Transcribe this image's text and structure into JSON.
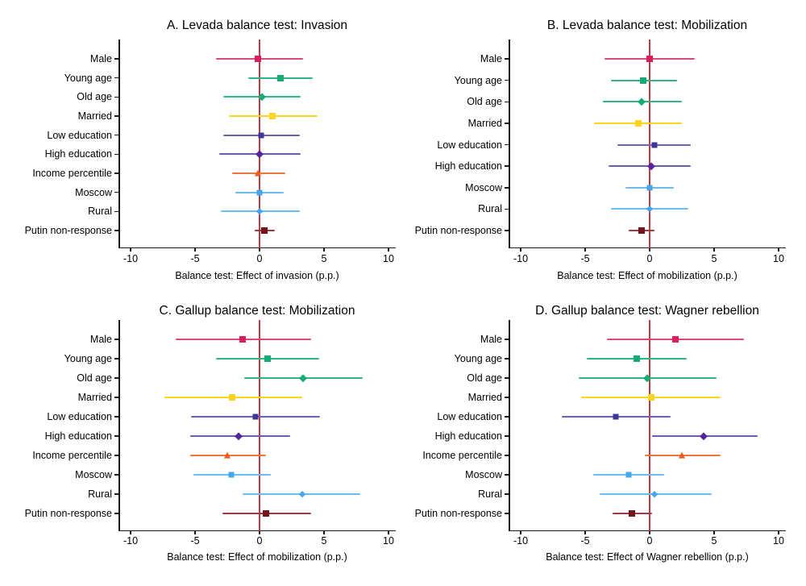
{
  "figure": {
    "background": "#ffffff"
  },
  "styles": {
    "refline_color": "#bf3a42",
    "axis_color": "#1a1a1a",
    "text_color": "#000000",
    "marker_styles": {
      "Male": {
        "shape": "square",
        "color": "#d81e5f",
        "line": "#d84a73",
        "size": 8
      },
      "Young age": {
        "shape": "square",
        "color": "#15ab72",
        "line": "#2db685",
        "size": 8
      },
      "Old age": {
        "shape": "diamond",
        "color": "#15ab72",
        "line": "#2db685",
        "size": 8
      },
      "Married": {
        "shape": "square",
        "color": "#fdd41f",
        "line": "#fdd520",
        "size": 8
      },
      "Low education": {
        "shape": "square",
        "color": "#3d3896",
        "line": "#6c63af",
        "size": 7
      },
      "High education": {
        "shape": "diamond",
        "color": "#54269e",
        "line": "#6c5caf",
        "size": 8
      },
      "Income percentile": {
        "shape": "triangle",
        "color": "#f1591d",
        "line": "#f2753a",
        "size": 9
      },
      "Moscow": {
        "shape": "square",
        "color": "#45a6e9",
        "line": "#6cbcee",
        "size": 7
      },
      "Rural": {
        "shape": "diamond",
        "color": "#45a6e9",
        "line": "#6cbcee",
        "size": 7
      },
      "Putin non-response": {
        "shape": "square",
        "color": "#76141d",
        "line": "#9b3c42",
        "size": 8
      }
    }
  },
  "chart_data": [
    {
      "type": "scatter",
      "subtype": "coefficient-plot-with-ci",
      "title": "A. Levada balance test: Invasion",
      "xlabel": "Balance test: Effect of invasion (p.p.)",
      "xticks": [
        -10,
        -5,
        0,
        5,
        10
      ],
      "xlim": [
        -10.9,
        10.6
      ],
      "refline_x": 0,
      "grid": false,
      "points": [
        {
          "label": "Male",
          "est": -0.1,
          "lo": -3.4,
          "hi": 3.4
        },
        {
          "label": "Young age",
          "est": 1.6,
          "lo": -0.9,
          "hi": 4.1
        },
        {
          "label": "Old age",
          "est": 0.2,
          "lo": -2.8,
          "hi": 3.2
        },
        {
          "label": "Married",
          "est": 1.0,
          "lo": -2.4,
          "hi": 4.5
        },
        {
          "label": "Low education",
          "est": 0.1,
          "lo": -2.8,
          "hi": 3.1
        },
        {
          "label": "High education",
          "est": 0.0,
          "lo": -3.1,
          "hi": 3.2
        },
        {
          "label": "Income percentile",
          "est": -0.1,
          "lo": -2.1,
          "hi": 2.0
        },
        {
          "label": "Moscow",
          "est": 0.0,
          "lo": -1.9,
          "hi": 1.9
        },
        {
          "label": "Rural",
          "est": 0.0,
          "lo": -3.0,
          "hi": 3.1
        },
        {
          "label": "Putin non-response",
          "est": 0.4,
          "lo": -0.4,
          "hi": 1.2
        }
      ]
    },
    {
      "type": "scatter",
      "subtype": "coefficient-plot-with-ci",
      "title": "B. Levada balance test: Mobilization",
      "xlabel": "Balance test: Effect of mobilization (p.p.)",
      "xticks": [
        -10,
        -5,
        0,
        5,
        10
      ],
      "xlim": [
        -10.9,
        10.6
      ],
      "refline_x": 0,
      "grid": false,
      "points": [
        {
          "label": "Male",
          "est": 0.0,
          "lo": -3.5,
          "hi": 3.5
        },
        {
          "label": "Young age",
          "est": -0.5,
          "lo": -3.0,
          "hi": 2.1
        },
        {
          "label": "Old age",
          "est": -0.6,
          "lo": -3.6,
          "hi": 2.5
        },
        {
          "label": "Married",
          "est": -0.9,
          "lo": -4.3,
          "hi": 2.5
        },
        {
          "label": "Low education",
          "est": 0.4,
          "lo": -2.5,
          "hi": 3.2
        },
        {
          "label": "High education",
          "est": 0.1,
          "lo": -3.2,
          "hi": 3.2
        },
        {
          "label": "Moscow",
          "est": 0.0,
          "lo": -1.9,
          "hi": 1.9
        },
        {
          "label": "Rural",
          "est": 0.0,
          "lo": -3.0,
          "hi": 3.0
        },
        {
          "label": "Putin non-response",
          "est": -0.6,
          "lo": -1.6,
          "hi": 0.4
        }
      ]
    },
    {
      "type": "scatter",
      "subtype": "coefficient-plot-with-ci",
      "title": "C. Gallup balance test: Mobilization",
      "xlabel": "Balance test: Effect of mobilization (p.p.)",
      "xticks": [
        -10,
        -5,
        0,
        5,
        10
      ],
      "xlim": [
        -10.9,
        10.6
      ],
      "refline_x": 0,
      "grid": false,
      "points": [
        {
          "label": "Male",
          "est": -1.3,
          "lo": -6.5,
          "hi": 4.0
        },
        {
          "label": "Young age",
          "est": 0.6,
          "lo": -3.4,
          "hi": 4.6
        },
        {
          "label": "Old age",
          "est": 3.4,
          "lo": -1.2,
          "hi": 8.0
        },
        {
          "label": "Married",
          "est": -2.1,
          "lo": -7.4,
          "hi": 3.3
        },
        {
          "label": "Low education",
          "est": -0.3,
          "lo": -5.3,
          "hi": 4.7
        },
        {
          "label": "High education",
          "est": -1.6,
          "lo": -5.4,
          "hi": 2.4
        },
        {
          "label": "Income percentile",
          "est": -2.5,
          "lo": -5.4,
          "hi": 0.5
        },
        {
          "label": "Moscow",
          "est": -2.2,
          "lo": -5.1,
          "hi": 0.9
        },
        {
          "label": "Rural",
          "est": 3.3,
          "lo": -1.3,
          "hi": 7.8
        },
        {
          "label": "Putin non-response",
          "est": 0.5,
          "lo": -2.9,
          "hi": 4.0
        }
      ]
    },
    {
      "type": "scatter",
      "subtype": "coefficient-plot-with-ci",
      "title": "D. Gallup balance test: Wagner rebellion",
      "xlabel": "Balance test: Effect of Wagner rebellion (p.p.)",
      "xticks": [
        -10,
        -5,
        0,
        5,
        10
      ],
      "xlim": [
        -10.9,
        10.6
      ],
      "refline_x": 0,
      "grid": false,
      "points": [
        {
          "label": "Male",
          "est": 2.0,
          "lo": -3.3,
          "hi": 7.3
        },
        {
          "label": "Young age",
          "est": -1.0,
          "lo": -4.9,
          "hi": 2.9
        },
        {
          "label": "Old age",
          "est": -0.2,
          "lo": -5.5,
          "hi": 5.2
        },
        {
          "label": "Married",
          "est": 0.1,
          "lo": -5.3,
          "hi": 5.5
        },
        {
          "label": "Low education",
          "est": -2.6,
          "lo": -6.8,
          "hi": 1.6
        },
        {
          "label": "High education",
          "est": 4.2,
          "lo": 0.2,
          "hi": 8.4
        },
        {
          "label": "Income percentile",
          "est": 2.5,
          "lo": -0.4,
          "hi": 5.5
        },
        {
          "label": "Moscow",
          "est": -1.6,
          "lo": -4.4,
          "hi": 1.1
        },
        {
          "label": "Rural",
          "est": 0.4,
          "lo": -3.9,
          "hi": 4.8
        },
        {
          "label": "Putin non-response",
          "est": -1.4,
          "lo": -2.9,
          "hi": 0.2
        }
      ]
    }
  ]
}
